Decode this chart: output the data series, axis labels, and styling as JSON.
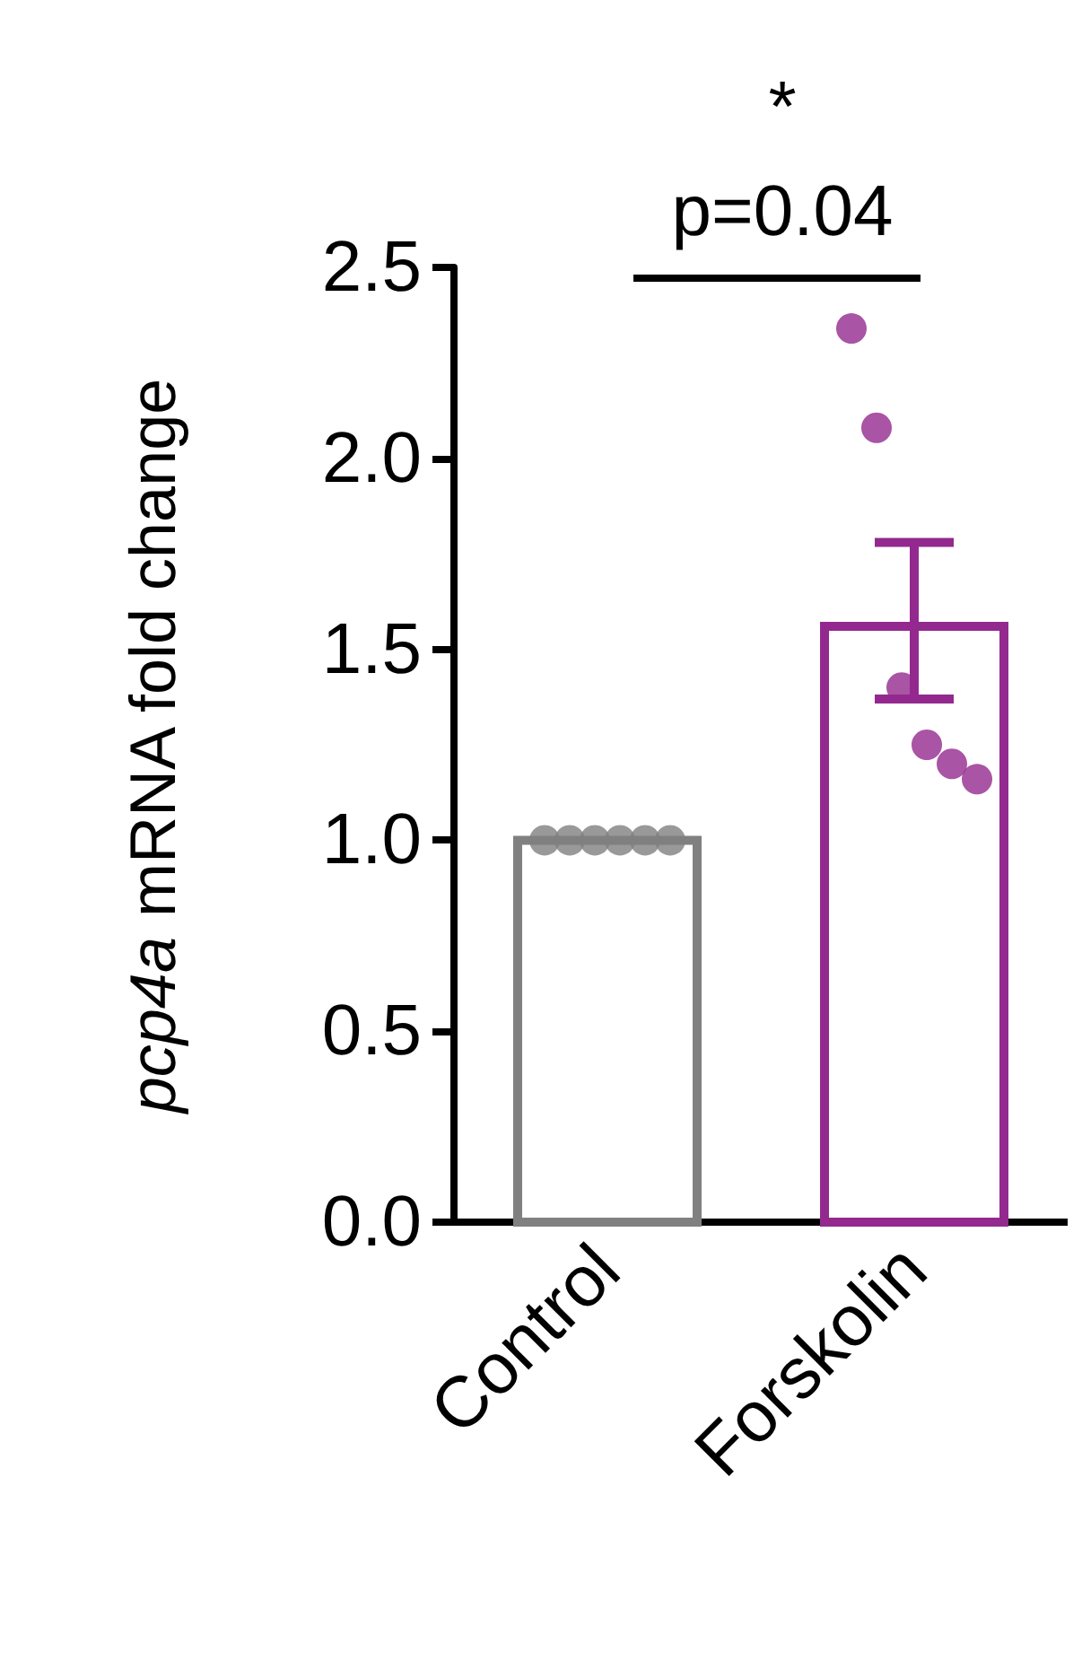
{
  "chart_data": {
    "type": "bar",
    "ylabel": "pcp4a mRNA fold change",
    "categories": [
      "Control",
      "Forskolin"
    ],
    "ylim": [
      0,
      2.5
    ],
    "yticks": [
      {
        "value": 0,
        "label": "0.0"
      },
      {
        "value": 0.5,
        "label": "0.5"
      },
      {
        "value": 1,
        "label": "1.0"
      },
      {
        "value": 1.5,
        "label": "1.5"
      },
      {
        "value": 2,
        "label": "2.0"
      },
      {
        "value": 2.5,
        "label": "2.5"
      }
    ],
    "grid": false,
    "marker": "circle",
    "annotations": [
      "*",
      "p=0.04"
    ],
    "series": [
      {
        "values": [
          1.0,
          1.56
        ],
        "colors": [
          "#808080",
          "#93298f"
        ],
        "errors": [
          null,
          [
            1.37,
            1.78
          ]
        ]
      },
      {
        "type": "scatter",
        "x": [
          "Control",
          "Control",
          "Control",
          "Control",
          "Control",
          "Control",
          "Forskolin",
          "Forskolin",
          "Forskolin",
          "Forskolin",
          "Forskolin",
          "Forskolin"
        ],
        "values": [
          1,
          1,
          1,
          1,
          1,
          1,
          2.34,
          2.08,
          1.4,
          1.25,
          1.2,
          1.16
        ],
        "colors": [
          "#808080",
          "#808080",
          "#808080",
          "#808080",
          "#808080",
          "#808080",
          "#93298f",
          "#93298f",
          "#93298f",
          "#93298f",
          "#93298f",
          "#93298f"
        ]
      }
    ]
  }
}
